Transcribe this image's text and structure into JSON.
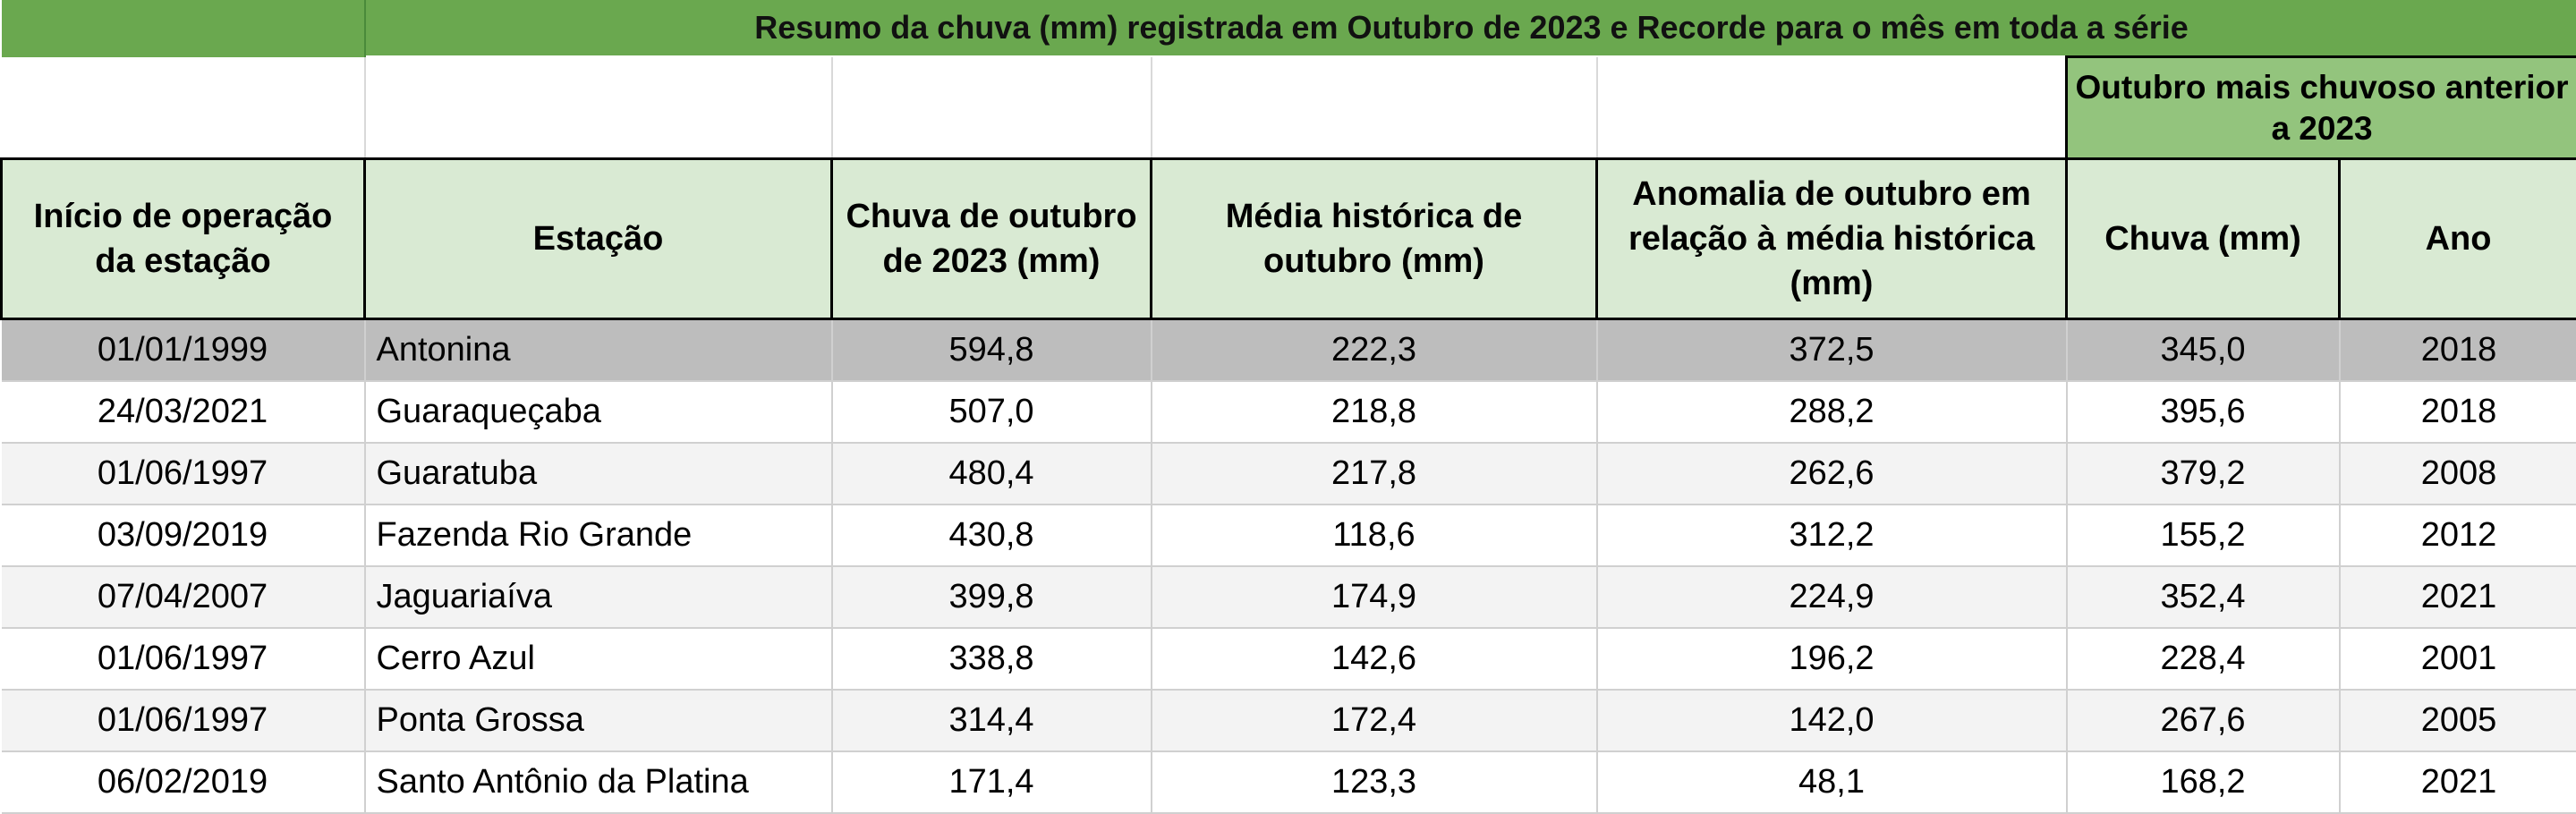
{
  "title": "Resumo da chuva (mm) registrada em Outubro de 2023 e Recorde para o mês em toda a série",
  "super_header": "Outubro mais chuvoso anterior a 2023",
  "headers": {
    "inicio": "Início de operação da estação",
    "estacao": "Estação",
    "chuva2023": "Chuva de outubro de 2023 (mm)",
    "media": "Média histórica de outubro (mm)",
    "anomalia": "Anomalia de outubro em relação à média histórica (mm)",
    "chuva": "Chuva (mm)",
    "ano": "Ano"
  },
  "rows": [
    {
      "inicio": "01/01/1999",
      "estacao": "Antonina",
      "chuva2023": "594,8",
      "media": "222,3",
      "anomalia": "372,5",
      "chuva": "345,0",
      "ano": "2018"
    },
    {
      "inicio": "24/03/2021",
      "estacao": "Guaraqueçaba",
      "chuva2023": "507,0",
      "media": "218,8",
      "anomalia": "288,2",
      "chuva": "395,6",
      "ano": "2018"
    },
    {
      "inicio": "01/06/1997",
      "estacao": "Guaratuba",
      "chuva2023": "480,4",
      "media": "217,8",
      "anomalia": "262,6",
      "chuva": "379,2",
      "ano": "2008"
    },
    {
      "inicio": "03/09/2019",
      "estacao": "Fazenda Rio Grande",
      "chuva2023": "430,8",
      "media": "118,6",
      "anomalia": "312,2",
      "chuva": "155,2",
      "ano": "2012"
    },
    {
      "inicio": "07/04/2007",
      "estacao": "Jaguariaíva",
      "chuva2023": "399,8",
      "media": "174,9",
      "anomalia": "224,9",
      "chuva": "352,4",
      "ano": "2021"
    },
    {
      "inicio": "01/06/1997",
      "estacao": "Cerro Azul",
      "chuva2023": "338,8",
      "media": "142,6",
      "anomalia": "196,2",
      "chuva": "228,4",
      "ano": "2001"
    },
    {
      "inicio": "01/06/1997",
      "estacao": "Ponta Grossa",
      "chuva2023": "314,4",
      "media": "172,4",
      "anomalia": "142,0",
      "chuva": "267,6",
      "ano": "2005"
    },
    {
      "inicio": "06/02/2019",
      "estacao": "Santo Antônio da Platina",
      "chuva2023": "171,4",
      "media": "123,3",
      "anomalia": "48,1",
      "chuva": "168,2",
      "ano": "2021"
    }
  ]
}
